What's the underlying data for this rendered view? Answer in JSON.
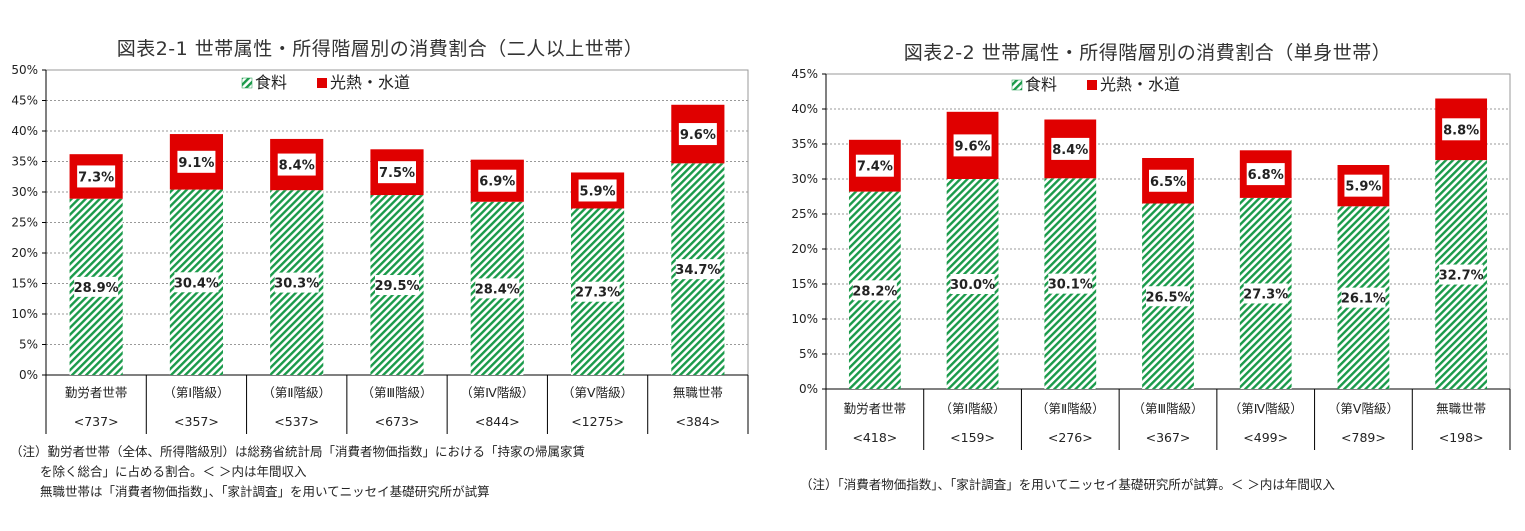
{
  "colors": {
    "food_fill": "#ffffff",
    "food_hatch": "#1a9a4a",
    "utility": "#e00000",
    "axis": "#000000",
    "grid": "#999999"
  },
  "legend": {
    "food": "食料",
    "utility": "光熱・水道"
  },
  "chart_data": [
    {
      "type": "bar",
      "stacked": true,
      "title": "図表2-1 世帯属性・所得階層別の消費割合（二人以上世帯）",
      "categories": [
        "勤労者世帯",
        "（第Ⅰ階級）",
        "（第Ⅱ階級）",
        "（第Ⅲ階級）",
        "（第Ⅳ階級）",
        "（第Ⅴ階級）",
        "無職世帯"
      ],
      "income": [
        "<737>",
        "<357>",
        "<537>",
        "<673>",
        "<844>",
        "<1275>",
        "<384>"
      ],
      "series": [
        {
          "name": "食料",
          "values": [
            28.9,
            30.4,
            30.3,
            29.5,
            28.4,
            27.3,
            34.7
          ],
          "labels": [
            "28.9%",
            "30.4%",
            "30.3%",
            "29.5%",
            "28.4%",
            "27.3%",
            "34.7%"
          ]
        },
        {
          "name": "光熱・水道",
          "values": [
            7.3,
            9.1,
            8.4,
            7.5,
            6.9,
            5.9,
            9.6
          ],
          "labels": [
            "7.3%",
            "9.1%",
            "8.4%",
            "7.5%",
            "6.9%",
            "5.9%",
            "9.6%"
          ]
        }
      ],
      "ylim": [
        0,
        50
      ],
      "yticks": [
        "0%",
        "5%",
        "10%",
        "15%",
        "20%",
        "25%",
        "30%",
        "35%",
        "40%",
        "45%",
        "50%"
      ],
      "grid": true,
      "legend_position": "top",
      "notes": [
        "（注）勤労者世帯（全体、所得階級別）は総務省統計局「消費者物価指数」における「持家の帰属家賃",
        "を除く総合」に占める割合。＜ ＞内は年間収入",
        "無職世帯は「消費者物価指数」、「家計調査」を用いてニッセイ基礎研究所が試算"
      ]
    },
    {
      "type": "bar",
      "stacked": true,
      "title": "図表2-2 世帯属性・所得階層別の消費割合（単身世帯）",
      "categories": [
        "勤労者世帯",
        "（第Ⅰ階級）",
        "（第Ⅱ階級）",
        "（第Ⅲ階級）",
        "（第Ⅳ階級）",
        "（第Ⅴ階級）",
        "無職世帯"
      ],
      "income": [
        "<418>",
        "<159>",
        "<276>",
        "<367>",
        "<499>",
        "<789>",
        "<198>"
      ],
      "series": [
        {
          "name": "食料",
          "values": [
            28.2,
            30.0,
            30.1,
            26.5,
            27.3,
            26.1,
            32.7
          ],
          "labels": [
            "28.2%",
            "30.0%",
            "30.1%",
            "26.5%",
            "27.3%",
            "26.1%",
            "32.7%"
          ]
        },
        {
          "name": "光熱・水道",
          "values": [
            7.4,
            9.6,
            8.4,
            6.5,
            6.8,
            5.9,
            8.8
          ],
          "labels": [
            "7.4%",
            "9.6%",
            "8.4%",
            "6.5%",
            "6.8%",
            "5.9%",
            "8.8%"
          ]
        }
      ],
      "ylim": [
        0,
        45
      ],
      "yticks": [
        "0%",
        "5%",
        "10%",
        "15%",
        "20%",
        "25%",
        "30%",
        "35%",
        "40%",
        "45%"
      ],
      "grid": true,
      "legend_position": "top",
      "notes": [
        "（注）「消費者物価指数」、「家計調査」を用いてニッセイ基礎研究所が試算。＜ ＞内は年間収入"
      ]
    }
  ]
}
